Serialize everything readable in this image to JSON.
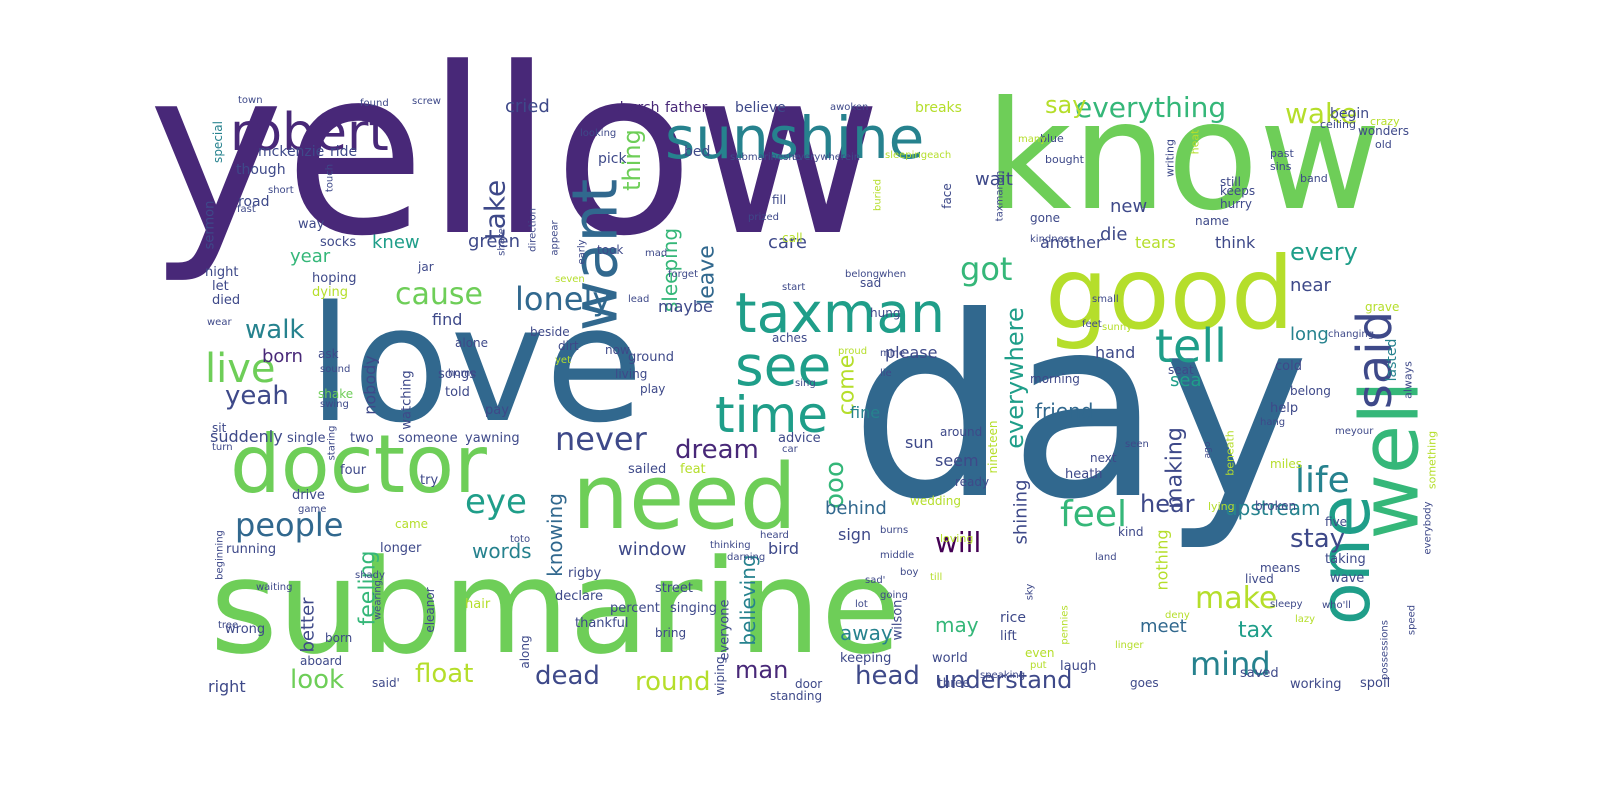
{
  "colors": {
    "background": "#ffffff",
    "palette": [
      "#440154",
      "#482878",
      "#3e4989",
      "#31688e",
      "#26828e",
      "#1f9e89",
      "#35b779",
      "#6ece58",
      "#b5de2b",
      "#fde725"
    ]
  },
  "words": [
    {
      "text": "yellow",
      "color": "#482878"
    },
    {
      "text": "day",
      "color": "#31688e"
    },
    {
      "text": "know",
      "color": "#6ece58"
    },
    {
      "text": "love",
      "color": "#31688e"
    },
    {
      "text": "submarine",
      "color": "#6ece58"
    },
    {
      "text": "need",
      "color": "#6ece58"
    },
    {
      "text": "good",
      "color": "#b5de2b"
    },
    {
      "text": "doctor",
      "color": "#6ece58"
    },
    {
      "text": "sunshine",
      "color": "#26828e"
    },
    {
      "text": "robert",
      "color": "#482878"
    },
    {
      "text": "want",
      "color": "#31688e"
    },
    {
      "text": "taxman",
      "color": "#1f9e89"
    },
    {
      "text": "see",
      "color": "#1f9e89"
    },
    {
      "text": "time",
      "color": "#1f9e89"
    },
    {
      "text": "one",
      "color": "#1f9e89"
    },
    {
      "text": "well",
      "color": "#35b779"
    },
    {
      "text": "said",
      "color": "#3e4989"
    },
    {
      "text": "people",
      "color": "#31688e"
    },
    {
      "text": "tell",
      "color": "#1f9e89"
    },
    {
      "text": "live",
      "color": "#6ece58"
    },
    {
      "text": "lonely",
      "color": "#31688e"
    },
    {
      "text": "cause",
      "color": "#6ece58"
    },
    {
      "text": "never",
      "color": "#3e4989"
    },
    {
      "text": "life",
      "color": "#26828e"
    },
    {
      "text": "mind",
      "color": "#26828e"
    },
    {
      "text": "feel",
      "color": "#35b779"
    },
    {
      "text": "eye",
      "color": "#1f9e89"
    },
    {
      "text": "got",
      "color": "#35b779"
    },
    {
      "text": "take",
      "color": "#3e4989"
    },
    {
      "text": "walk",
      "color": "#26828e"
    },
    {
      "text": "yeah",
      "color": "#3e4989"
    },
    {
      "text": "ooo",
      "color": "#35b779"
    },
    {
      "text": "everything",
      "color": "#35b779"
    },
    {
      "text": "wake",
      "color": "#b5de2b"
    },
    {
      "text": "everywhere",
      "color": "#1f9e89"
    },
    {
      "text": "dream",
      "color": "#482878"
    },
    {
      "text": "make",
      "color": "#b5de2b"
    },
    {
      "text": "head",
      "color": "#3e4989"
    },
    {
      "text": "dead",
      "color": "#3e4989"
    },
    {
      "text": "round",
      "color": "#b5de2b"
    },
    {
      "text": "float",
      "color": "#b5de2b"
    },
    {
      "text": "look",
      "color": "#6ece58"
    },
    {
      "text": "understand",
      "color": "#3e4989"
    },
    {
      "text": "man",
      "color": "#482878"
    },
    {
      "text": "will",
      "color": "#440154"
    },
    {
      "text": "stay",
      "color": "#3e4989"
    },
    {
      "text": "hear",
      "color": "#3e4989"
    },
    {
      "text": "upstream",
      "color": "#26828e"
    },
    {
      "text": "feeling",
      "color": "#35b779"
    },
    {
      "text": "tax",
      "color": "#1f9e89"
    },
    {
      "text": "say",
      "color": "#b5de2b"
    },
    {
      "text": "thing",
      "color": "#6ece58"
    },
    {
      "text": "leave",
      "color": "#31688e"
    },
    {
      "text": "sleeping",
      "color": "#35b779"
    },
    {
      "text": "every",
      "color": "#1f9e89"
    },
    {
      "text": "making",
      "color": "#3e4989"
    },
    {
      "text": "come",
      "color": "#b5de2b"
    },
    {
      "text": "knowing",
      "color": "#31688e"
    },
    {
      "text": "believing",
      "color": "#26828e"
    },
    {
      "text": "window",
      "color": "#3e4989"
    },
    {
      "text": "words",
      "color": "#26828e"
    },
    {
      "text": "better",
      "color": "#3e4989"
    },
    {
      "text": "away",
      "color": "#26828e"
    },
    {
      "text": "behind",
      "color": "#31688e"
    },
    {
      "text": "may",
      "color": "#35b779"
    },
    {
      "text": "meet",
      "color": "#31688e"
    },
    {
      "text": "shining",
      "color": "#3e4989"
    },
    {
      "text": "friend",
      "color": "#31688e"
    },
    {
      "text": "nobody",
      "color": "#3e4989"
    },
    {
      "text": "born",
      "color": "#482878"
    },
    {
      "text": "green",
      "color": "#3e4989"
    },
    {
      "text": "knew",
      "color": "#1f9e89"
    },
    {
      "text": "year",
      "color": "#35b779"
    },
    {
      "text": "cried",
      "color": "#3e4989"
    },
    {
      "text": "wait",
      "color": "#3e4989"
    },
    {
      "text": "new",
      "color": "#3e4989"
    },
    {
      "text": "die",
      "color": "#3e4989"
    },
    {
      "text": "care",
      "color": "#3e4989"
    },
    {
      "text": "another",
      "color": "#3e4989"
    },
    {
      "text": "tears",
      "color": "#b5de2b"
    },
    {
      "text": "think",
      "color": "#3e4989"
    },
    {
      "text": "near",
      "color": "#3e4989"
    },
    {
      "text": "long",
      "color": "#26828e"
    },
    {
      "text": "hand",
      "color": "#3e4989"
    },
    {
      "text": "sea",
      "color": "#1f9e89"
    },
    {
      "text": "lasted",
      "color": "#26828e"
    },
    {
      "text": "please",
      "color": "#3e4989"
    },
    {
      "text": "maybe",
      "color": "#3e4989"
    },
    {
      "text": "find",
      "color": "#3e4989"
    },
    {
      "text": "fine",
      "color": "#26828e"
    },
    {
      "text": "sun",
      "color": "#3e4989"
    },
    {
      "text": "seem",
      "color": "#3e4989"
    },
    {
      "text": "sign",
      "color": "#3e4989"
    },
    {
      "text": "bird",
      "color": "#3e4989"
    },
    {
      "text": "right",
      "color": "#3e4989"
    },
    {
      "text": "nothing",
      "color": "#b5de2b"
    },
    {
      "text": "mckenzie",
      "color": "#3e4989"
    },
    {
      "text": "church",
      "color": "#482878"
    },
    {
      "text": "father",
      "color": "#482878"
    },
    {
      "text": "believe",
      "color": "#3e4989"
    },
    {
      "text": "breaks",
      "color": "#b5de2b"
    },
    {
      "text": "begin",
      "color": "#3e4989"
    },
    {
      "text": "wonders",
      "color": "#3e4989"
    },
    {
      "text": "special",
      "color": "#26828e"
    },
    {
      "text": "ride",
      "color": "#3e4989"
    },
    {
      "text": "pick",
      "color": "#3e4989"
    },
    {
      "text": "bed",
      "color": "#3e4989"
    },
    {
      "text": "though",
      "color": "#3e4989"
    },
    {
      "text": "road",
      "color": "#3e4989"
    },
    {
      "text": "sermon",
      "color": "#3e4989"
    },
    {
      "text": "socks",
      "color": "#3e4989"
    },
    {
      "text": "way",
      "color": "#3e4989"
    },
    {
      "text": "night",
      "color": "#3e4989"
    },
    {
      "text": "hoping",
      "color": "#3e4989"
    },
    {
      "text": "let",
      "color": "#3e4989"
    },
    {
      "text": "dying",
      "color": "#b5de2b"
    },
    {
      "text": "died",
      "color": "#3e4989"
    },
    {
      "text": "ask",
      "color": "#3e4989"
    },
    {
      "text": "shake",
      "color": "#6ece58"
    },
    {
      "text": "suddenly",
      "color": "#3e4989"
    },
    {
      "text": "sit",
      "color": "#3e4989"
    },
    {
      "text": "single",
      "color": "#3e4989"
    },
    {
      "text": "two",
      "color": "#3e4989"
    },
    {
      "text": "someone",
      "color": "#3e4989"
    },
    {
      "text": "yawning",
      "color": "#3e4989"
    },
    {
      "text": "songs",
      "color": "#3e4989"
    },
    {
      "text": "told",
      "color": "#3e4989"
    },
    {
      "text": "watching",
      "color": "#3e4989"
    },
    {
      "text": "pay",
      "color": "#3e4989"
    },
    {
      "text": "four",
      "color": "#3e4989"
    },
    {
      "text": "drive",
      "color": "#3e4989"
    },
    {
      "text": "try",
      "color": "#3e4989"
    },
    {
      "text": "advice",
      "color": "#3e4989"
    },
    {
      "text": "sailed",
      "color": "#3e4989"
    },
    {
      "text": "feat",
      "color": "#b5de2b"
    },
    {
      "text": "running",
      "color": "#3e4989"
    },
    {
      "text": "longer",
      "color": "#3e4989"
    },
    {
      "text": "came",
      "color": "#b5de2b"
    },
    {
      "text": "hair",
      "color": "#b5de2b"
    },
    {
      "text": "wrong",
      "color": "#3e4989"
    },
    {
      "text": "aboard",
      "color": "#3e4989"
    },
    {
      "text": "born",
      "color": "#3e4989"
    },
    {
      "text": "said'",
      "color": "#3e4989"
    },
    {
      "text": "eleanor",
      "color": "#3e4989"
    },
    {
      "text": "along",
      "color": "#3e4989"
    },
    {
      "text": "everyone",
      "color": "#3e4989"
    },
    {
      "text": "percent",
      "color": "#3e4989"
    },
    {
      "text": "declare",
      "color": "#3e4989"
    },
    {
      "text": "bring",
      "color": "#3e4989"
    },
    {
      "text": "thankful",
      "color": "#3e4989"
    },
    {
      "text": "street",
      "color": "#3e4989"
    },
    {
      "text": "rigby",
      "color": "#3e4989"
    },
    {
      "text": "singing",
      "color": "#3e4989"
    },
    {
      "text": "standing",
      "color": "#3e4989"
    },
    {
      "text": "wiping",
      "color": "#3e4989"
    },
    {
      "text": "door",
      "color": "#3e4989"
    },
    {
      "text": "keeping",
      "color": "#3e4989"
    },
    {
      "text": "wilson",
      "color": "#3e4989"
    },
    {
      "text": "world",
      "color": "#3e4989"
    },
    {
      "text": "three",
      "color": "#3e4989"
    },
    {
      "text": "rice",
      "color": "#3e4989"
    },
    {
      "text": "lift",
      "color": "#3e4989"
    },
    {
      "text": "even",
      "color": "#b5de2b"
    },
    {
      "text": "laugh",
      "color": "#3e4989"
    },
    {
      "text": "goes",
      "color": "#3e4989"
    },
    {
      "text": "saved",
      "color": "#3e4989"
    },
    {
      "text": "working",
      "color": "#3e4989"
    },
    {
      "text": "spoil",
      "color": "#3e4989"
    },
    {
      "text": "kind",
      "color": "#3e4989"
    },
    {
      "text": "lived",
      "color": "#3e4989"
    },
    {
      "text": "wave",
      "color": "#3e4989"
    },
    {
      "text": "taking",
      "color": "#3e4989"
    },
    {
      "text": "means",
      "color": "#3e4989"
    },
    {
      "text": "five",
      "color": "#3e4989"
    },
    {
      "text": "broken",
      "color": "#3e4989"
    },
    {
      "text": "heath",
      "color": "#3e4989"
    },
    {
      "text": "next",
      "color": "#3e4989"
    },
    {
      "text": "ready",
      "color": "#3e4989"
    },
    {
      "text": "around",
      "color": "#3e4989"
    },
    {
      "text": "help",
      "color": "#3e4989"
    },
    {
      "text": "cold",
      "color": "#3e4989"
    },
    {
      "text": "seat",
      "color": "#3e4989"
    },
    {
      "text": "morning",
      "color": "#3e4989"
    },
    {
      "text": "belong",
      "color": "#3e4989"
    },
    {
      "text": "ground",
      "color": "#3e4989"
    },
    {
      "text": "living",
      "color": "#3e4989"
    },
    {
      "text": "play",
      "color": "#3e4989"
    },
    {
      "text": "alone",
      "color": "#3e4989"
    },
    {
      "text": "beside",
      "color": "#3e4989"
    },
    {
      "text": "dirt",
      "color": "#3e4989"
    },
    {
      "text": "now",
      "color": "#3e4989"
    },
    {
      "text": "aches",
      "color": "#3e4989"
    },
    {
      "text": "hung",
      "color": "#3e4989"
    },
    {
      "text": "sad",
      "color": "#3e4989"
    },
    {
      "text": "jar",
      "color": "#3e4989"
    },
    {
      "text": "took",
      "color": "#3e4989"
    },
    {
      "text": "fill",
      "color": "#3e4989"
    },
    {
      "text": "call",
      "color": "#b5de2b"
    },
    {
      "text": "face",
      "color": "#3e4989"
    },
    {
      "text": "gone",
      "color": "#3e4989"
    },
    {
      "text": "hurry",
      "color": "#3e4989"
    },
    {
      "text": "still",
      "color": "#3e4989"
    },
    {
      "text": "keeps",
      "color": "#3e4989"
    },
    {
      "text": "name",
      "color": "#3e4989"
    },
    {
      "text": "grave",
      "color": "#b5de2b"
    },
    {
      "text": "always",
      "color": "#3e4989"
    },
    {
      "text": "something",
      "color": "#b5de2b"
    },
    {
      "text": "miles",
      "color": "#b5de2b"
    },
    {
      "text": "beneath",
      "color": "#b5de2b"
    },
    {
      "text": "nineteen",
      "color": "#b5de2b"
    },
    {
      "text": "wedding",
      "color": "#b5de2b"
    },
    {
      "text": "loving",
      "color": "#b5de2b"
    },
    {
      "text": "lying",
      "color": "#b5de2b"
    },
    {
      "text": "writing",
      "color": "#3e4989"
    },
    {
      "text": "heat",
      "color": "#b5de2b"
    },
    {
      "text": "sins",
      "color": "#3e4989"
    },
    {
      "text": "past",
      "color": "#3e4989"
    },
    {
      "text": "bought",
      "color": "#3e4989"
    },
    {
      "text": "blue",
      "color": "#3e4989"
    },
    {
      "text": "band",
      "color": "#3e4989"
    },
    {
      "text": "old",
      "color": "#3e4989"
    },
    {
      "text": "ceiling",
      "color": "#3e4989"
    },
    {
      "text": "crazy",
      "color": "#b5de2b"
    },
    {
      "text": "town",
      "color": "#3e4989"
    },
    {
      "text": "found",
      "color": "#3e4989"
    },
    {
      "text": "screw",
      "color": "#3e4989"
    },
    {
      "text": "awoken",
      "color": "#3e4989"
    },
    {
      "text": "looking",
      "color": "#3e4989"
    },
    {
      "text": "many",
      "color": "#b5de2b"
    },
    {
      "text": "direction",
      "color": "#3e4989"
    },
    {
      "text": "appear",
      "color": "#3e4989"
    },
    {
      "text": "early",
      "color": "#3e4989"
    },
    {
      "text": "share",
      "color": "#3e4989"
    },
    {
      "text": "prized",
      "color": "#3e4989"
    },
    {
      "text": "fast",
      "color": "#3e4989"
    },
    {
      "text": "short",
      "color": "#3e4989"
    },
    {
      "text": "touch",
      "color": "#3e4989"
    },
    {
      "text": "staring",
      "color": "#3e4989"
    },
    {
      "text": "game",
      "color": "#3e4989"
    },
    {
      "text": "beginning",
      "color": "#3e4989"
    },
    {
      "text": "waiting",
      "color": "#3e4989"
    },
    {
      "text": "tree",
      "color": "#3e4989"
    },
    {
      "text": "shady",
      "color": "#3e4989"
    },
    {
      "text": "wearing",
      "color": "#3e4989"
    },
    {
      "text": "turn",
      "color": "#3e4989"
    },
    {
      "text": "sound",
      "color": "#3e4989"
    },
    {
      "text": "swing",
      "color": "#3e4989"
    },
    {
      "text": "wear",
      "color": "#3e4989"
    },
    {
      "text": "thinking",
      "color": "#3e4989"
    },
    {
      "text": "heard",
      "color": "#3e4989"
    },
    {
      "text": "darning",
      "color": "#3e4989"
    },
    {
      "text": "toto",
      "color": "#3e4989"
    },
    {
      "text": "burns",
      "color": "#3e4989"
    },
    {
      "text": "middle",
      "color": "#3e4989"
    },
    {
      "text": "going",
      "color": "#3e4989"
    },
    {
      "text": "till",
      "color": "#b5de2b"
    },
    {
      "text": "boy",
      "color": "#3e4989"
    },
    {
      "text": "sky",
      "color": "#3e4989"
    },
    {
      "text": "pennies",
      "color": "#b5de2b"
    },
    {
      "text": "land",
      "color": "#3e4989"
    },
    {
      "text": "deny",
      "color": "#b5de2b"
    },
    {
      "text": "speaking",
      "color": "#3e4989"
    },
    {
      "text": "put",
      "color": "#b5de2b"
    },
    {
      "text": "linger",
      "color": "#b5de2b"
    },
    {
      "text": "lazy",
      "color": "#b5de2b"
    },
    {
      "text": "sleepy",
      "color": "#3e4989"
    },
    {
      "text": "who'll",
      "color": "#3e4989"
    },
    {
      "text": "speed",
      "color": "#3e4989"
    },
    {
      "text": "possessions",
      "color": "#3e4989"
    },
    {
      "text": "everybody",
      "color": "#3e4989"
    },
    {
      "text": "lot",
      "color": "#3e4989"
    },
    {
      "text": "sad'",
      "color": "#3e4989"
    },
    {
      "text": "car",
      "color": "#3e4989"
    },
    {
      "text": "mine",
      "color": "#3e4989"
    },
    {
      "text": "lie",
      "color": "#3e4989"
    },
    {
      "text": "sing",
      "color": "#3e4989"
    },
    {
      "text": "seen",
      "color": "#3e4989"
    },
    {
      "text": "hang",
      "color": "#3e4989"
    },
    {
      "text": "meyour",
      "color": "#3e4989"
    },
    {
      "text": "sunny",
      "color": "#b5de2b"
    },
    {
      "text": "changing",
      "color": "#3e4989"
    },
    {
      "text": "small",
      "color": "#3e4989"
    },
    {
      "text": "feet",
      "color": "#3e4989"
    },
    {
      "text": "belongwhen",
      "color": "#3e4989"
    },
    {
      "text": "forget",
      "color": "#3e4989"
    },
    {
      "text": "start",
      "color": "#3e4989"
    },
    {
      "text": "lead",
      "color": "#3e4989"
    },
    {
      "text": "mad",
      "color": "#3e4989"
    },
    {
      "text": "seven",
      "color": "#b5de2b"
    },
    {
      "text": "kindness",
      "color": "#3e4989"
    },
    {
      "text": "proud",
      "color": "#b5de2b"
    },
    {
      "text": "yet",
      "color": "#b5de2b"
    },
    {
      "text": "home",
      "color": "#3e4989"
    },
    {
      "text": "submarineshe",
      "color": "#3e4989"
    },
    {
      "text": "everywherein",
      "color": "#3e4989"
    },
    {
      "text": "sleepingeach",
      "color": "#b5de2b"
    },
    {
      "text": "taxmanah",
      "color": "#3e4989"
    },
    {
      "text": "buried",
      "color": "#b5de2b"
    },
    {
      "text": "ago",
      "color": "#3e4989"
    }
  ]
}
